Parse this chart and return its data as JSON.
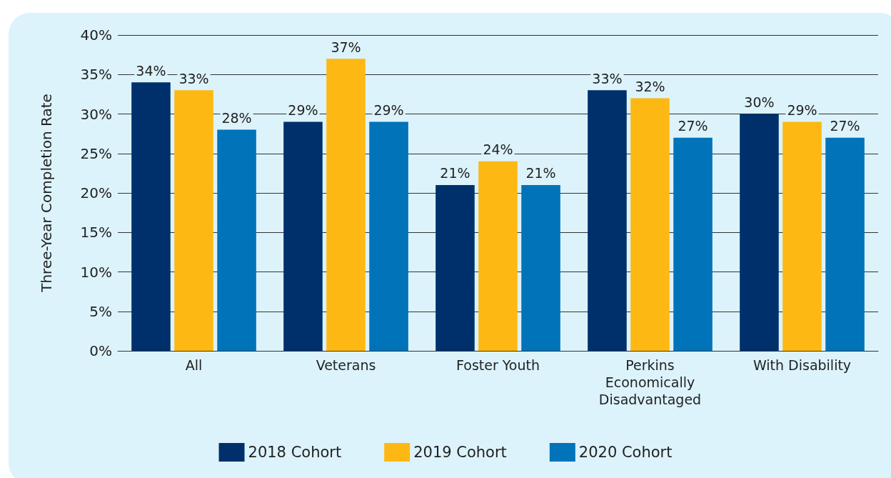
{
  "chart_data": {
    "type": "bar",
    "ylabel": "Three-Year Completion Rate",
    "categories": [
      "All",
      "Veterans",
      "Foster Youth",
      "Perkins\nEconomically\nDisadvantaged",
      "With Disability"
    ],
    "series": [
      {
        "name": "2018 Cohort",
        "color": "#00306b",
        "values": [
          34,
          29,
          21,
          33,
          30
        ],
        "value_labels": [
          "34%",
          "29%",
          "21%",
          "33%",
          "30%"
        ]
      },
      {
        "name": "2019 Cohort",
        "color": "#fdb813",
        "values": [
          33,
          37,
          24,
          32,
          29
        ],
        "value_labels": [
          "33%",
          "37%",
          "24%",
          "32%",
          "29%"
        ]
      },
      {
        "name": "2020 Cohort",
        "color": "#0073b9",
        "values": [
          28,
          29,
          21,
          27,
          27
        ],
        "value_labels": [
          "28%",
          "29%",
          "21%",
          "27%",
          "27%"
        ]
      }
    ],
    "ylim": [
      0,
      40
    ],
    "yticks": [
      {
        "value": 0,
        "label": "0%"
      },
      {
        "value": 5,
        "label": "5%"
      },
      {
        "value": 10,
        "label": "10%"
      },
      {
        "value": 15,
        "label": "15%"
      },
      {
        "value": 20,
        "label": "20%"
      },
      {
        "value": 25,
        "label": "25%"
      },
      {
        "value": 30,
        "label": "30%"
      },
      {
        "value": 35,
        "label": "35%"
      },
      {
        "value": 40,
        "label": "40%"
      }
    ],
    "grid": "y",
    "legend": "bottom"
  }
}
